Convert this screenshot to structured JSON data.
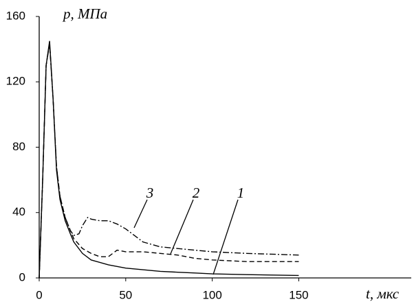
{
  "chart_data": {
    "type": "line",
    "y_label": "p, МПа",
    "x_label": "t, мкс",
    "xlim": [
      0,
      215
    ],
    "xticks": [
      0,
      50,
      100,
      150
    ],
    "ylim": [
      0,
      160
    ],
    "yticks": [
      0,
      40,
      80,
      120,
      160
    ],
    "series": [
      {
        "name": "1",
        "color": "#000000",
        "style": "solid",
        "x": [
          0,
          2,
          4,
          6,
          8,
          10,
          12,
          15,
          18,
          20,
          25,
          30,
          40,
          50,
          60,
          70,
          80,
          90,
          100,
          120,
          150
        ],
        "values": [
          0,
          60,
          130,
          145,
          110,
          66,
          48,
          35,
          27,
          22,
          15,
          11,
          8,
          6,
          5,
          4,
          3.5,
          3,
          2.5,
          2,
          1.5
        ]
      },
      {
        "name": "2",
        "color": "#000000",
        "style": "dashed",
        "x": [
          0,
          2,
          4,
          6,
          8,
          10,
          12,
          15,
          18,
          20,
          25,
          30,
          35,
          40,
          45,
          50,
          60,
          70,
          80,
          90,
          100,
          120,
          150
        ],
        "values": [
          0,
          60,
          130,
          144,
          110,
          68,
          50,
          37,
          29,
          24,
          18,
          15,
          13,
          13,
          17,
          16,
          16,
          15,
          14,
          12,
          11,
          10,
          10
        ]
      },
      {
        "name": "3",
        "color": "#000000",
        "style": "dashdot",
        "x": [
          0,
          2,
          4,
          6,
          8,
          10,
          12,
          15,
          18,
          20,
          23,
          25,
          28,
          30,
          35,
          40,
          45,
          50,
          55,
          60,
          70,
          80,
          90,
          100,
          120,
          150
        ],
        "values": [
          0,
          60,
          130,
          143,
          110,
          68,
          50,
          37,
          29,
          26,
          27,
          32,
          37,
          36,
          35,
          35,
          33,
          30,
          26,
          22,
          19,
          18,
          17,
          16,
          15,
          14
        ]
      }
    ]
  }
}
